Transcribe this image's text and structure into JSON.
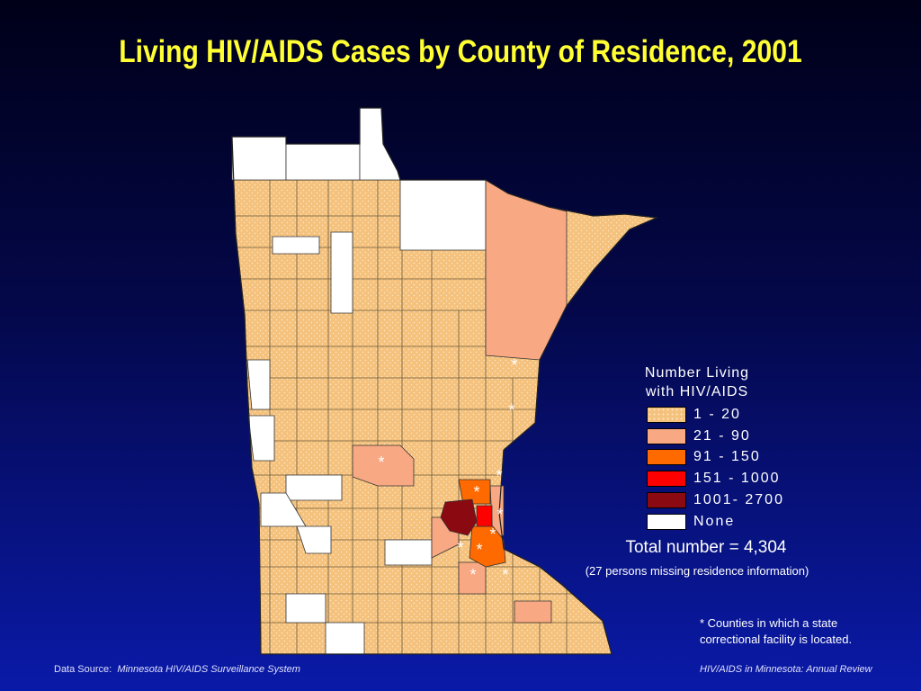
{
  "title": "Living HIV/AIDS Cases by County of Residence, 2001",
  "legend": {
    "title_line1": "Number Living",
    "title_line2": "with HIV/AIDS",
    "items": [
      {
        "label": "1 - 20",
        "color": "#f5c27e"
      },
      {
        "label": "21 - 90",
        "color": "#f8a882"
      },
      {
        "label": "91 - 150",
        "color": "#ff6a00"
      },
      {
        "label": "151 - 1000",
        "color": "#ff0000"
      },
      {
        "label": "1001- 2700",
        "color": "#8b0a12"
      },
      {
        "label": "None",
        "color": "#ffffff"
      }
    ]
  },
  "total": "Total number = 4,304",
  "missing": "(27 persons missing residence information)",
  "footnote": "* Counties in which a state correctional facility is located.",
  "source_label": "Data Source:",
  "source_value": "Minnesota HIV/AIDS Surveillance System",
  "review": "HIV/AIDS in Minnesota: Annual Review",
  "facility_marker": "*",
  "facility_marker_count": 11
}
